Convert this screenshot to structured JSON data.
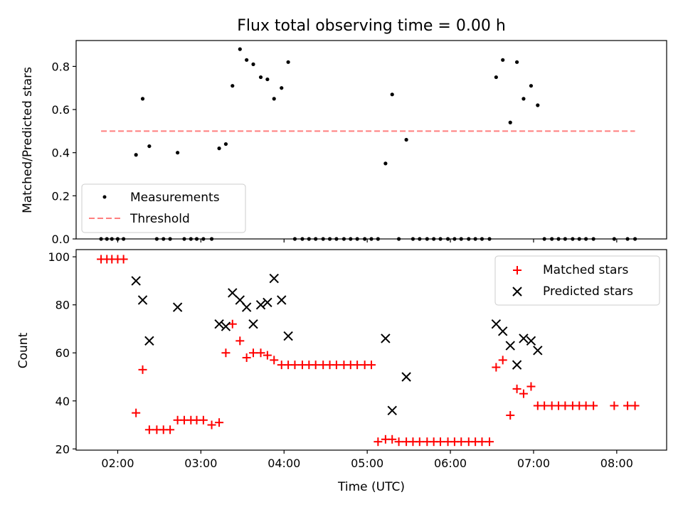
{
  "chart_data": [
    {
      "type": "scatter",
      "title": "Flux total observing time = 0.00 h",
      "xlabel": "",
      "ylabel": "Matched/Predicted stars",
      "xlim": [
        1.5,
        8.6
      ],
      "ylim": [
        0,
        0.92
      ],
      "yticks": [
        0.0,
        0.2,
        0.4,
        0.6,
        0.8
      ],
      "ytick_labels": [
        "0.0",
        "0.2",
        "0.4",
        "0.6",
        "0.8"
      ],
      "xticks": [
        2,
        3,
        4,
        5,
        6,
        7,
        8
      ],
      "legend": {
        "position": "lower-left",
        "entries": [
          "Measurements",
          "Threshold"
        ]
      },
      "series": [
        {
          "name": "Measurements",
          "marker": "dot",
          "color": "#000000",
          "x": [
            1.8,
            1.87,
            1.93,
            2.0,
            2.07,
            2.22,
            2.3,
            2.38,
            2.47,
            2.55,
            2.63,
            2.72,
            2.8,
            2.88,
            2.95,
            3.03,
            3.13,
            3.22,
            3.3,
            3.38,
            3.47,
            3.55,
            3.63,
            3.72,
            3.8,
            3.88,
            3.97,
            4.05,
            4.13,
            4.22,
            4.3,
            4.38,
            4.47,
            4.55,
            4.63,
            4.72,
            4.8,
            4.88,
            4.97,
            5.05,
            5.13,
            5.22,
            5.3,
            5.38,
            5.47,
            5.55,
            5.63,
            5.72,
            5.8,
            5.88,
            5.97,
            6.05,
            6.13,
            6.22,
            6.3,
            6.38,
            6.47,
            6.55,
            6.63,
            6.72,
            6.8,
            6.88,
            6.97,
            7.05,
            7.13,
            7.22,
            7.3,
            7.38,
            7.47,
            7.55,
            7.63,
            7.72,
            7.97,
            8.13,
            8.22
          ],
          "y": [
            0,
            0,
            0,
            0,
            0,
            0.39,
            0.65,
            0.43,
            0,
            0,
            0,
            0.4,
            0,
            0,
            0,
            0,
            0,
            0.42,
            0.44,
            0.71,
            0.88,
            0.83,
            0.81,
            0.75,
            0.74,
            0.65,
            0.7,
            0.82,
            0,
            0,
            0,
            0,
            0,
            0,
            0,
            0,
            0,
            0,
            0,
            0,
            0,
            0.35,
            0.67,
            0,
            0.46,
            0,
            0,
            0,
            0,
            0,
            0,
            0,
            0,
            0,
            0,
            0,
            0,
            0.75,
            0.83,
            0.54,
            0.82,
            0.65,
            0.71,
            0.62,
            0,
            0,
            0,
            0,
            0,
            0,
            0,
            0,
            0,
            0,
            0
          ]
        },
        {
          "name": "Threshold",
          "style": "dashed",
          "color": "#ff7f7f",
          "x": [
            1.8,
            8.22
          ],
          "y": [
            0.5,
            0.5
          ]
        }
      ]
    },
    {
      "type": "scatter",
      "title": "",
      "xlabel": "Time (UTC)",
      "ylabel": "Count",
      "xlim": [
        1.5,
        8.6
      ],
      "ylim": [
        19.5,
        103
      ],
      "yticks": [
        20,
        40,
        60,
        80,
        100
      ],
      "ytick_labels": [
        "20",
        "40",
        "60",
        "80",
        "100"
      ],
      "xticks": [
        2,
        3,
        4,
        5,
        6,
        7,
        8
      ],
      "xtick_labels": [
        "02:00",
        "03:00",
        "04:00",
        "05:00",
        "06:00",
        "07:00",
        "08:00"
      ],
      "legend": {
        "position": "top-right",
        "entries": [
          "Matched stars",
          "Predicted stars"
        ]
      },
      "series": [
        {
          "name": "Matched stars",
          "marker": "plus",
          "color": "#ff0000",
          "x": [
            1.8,
            1.87,
            1.93,
            2.0,
            2.07,
            2.22,
            2.3,
            2.38,
            2.47,
            2.55,
            2.63,
            2.72,
            2.8,
            2.88,
            2.95,
            3.03,
            3.13,
            3.22,
            3.3,
            3.38,
            3.47,
            3.55,
            3.63,
            3.72,
            3.8,
            3.88,
            3.97,
            4.05,
            4.13,
            4.22,
            4.3,
            4.38,
            4.47,
            4.55,
            4.63,
            4.72,
            4.8,
            4.88,
            4.97,
            5.05,
            5.13,
            5.22,
            5.3,
            5.38,
            5.47,
            5.55,
            5.63,
            5.72,
            5.8,
            5.88,
            5.97,
            6.05,
            6.13,
            6.22,
            6.3,
            6.38,
            6.47,
            6.55,
            6.63,
            6.72,
            6.8,
            6.88,
            6.97,
            7.05,
            7.13,
            7.22,
            7.3,
            7.38,
            7.47,
            7.55,
            7.63,
            7.72,
            7.97,
            8.13,
            8.22
          ],
          "y": [
            99,
            99,
            99,
            99,
            99,
            35,
            53,
            28,
            28,
            28,
            28,
            32,
            32,
            32,
            32,
            32,
            30,
            31,
            60,
            72,
            65,
            58,
            60,
            60,
            59,
            57,
            55,
            55,
            55,
            55,
            55,
            55,
            55,
            55,
            55,
            55,
            55,
            55,
            55,
            55,
            23,
            24,
            24,
            23,
            23,
            23,
            23,
            23,
            23,
            23,
            23,
            23,
            23,
            23,
            23,
            23,
            23,
            54,
            57,
            34,
            45,
            43,
            46,
            38,
            38,
            38,
            38,
            38,
            38,
            38,
            38,
            38,
            38,
            38,
            38
          ]
        },
        {
          "name": "Predicted stars",
          "marker": "x",
          "color": "#000000",
          "x": [
            2.22,
            2.3,
            2.38,
            2.72,
            3.22,
            3.3,
            3.38,
            3.47,
            3.55,
            3.63,
            3.72,
            3.8,
            3.88,
            3.97,
            4.05,
            5.22,
            5.3,
            5.47,
            6.55,
            6.63,
            6.72,
            6.8,
            6.88,
            6.97,
            7.05
          ],
          "y": [
            90,
            82,
            65,
            79,
            72,
            71,
            85,
            82,
            79,
            72,
            80,
            81,
            91,
            82,
            67,
            66,
            36,
            50,
            72,
            69,
            63,
            55,
            66,
            65,
            61
          ]
        }
      ]
    }
  ]
}
